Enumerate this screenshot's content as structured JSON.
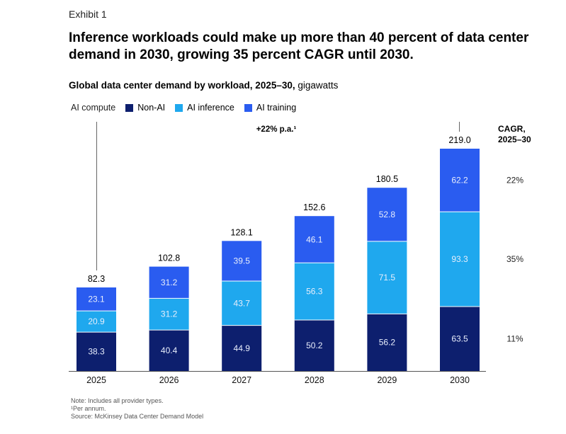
{
  "exhibit": "Exhibit 1",
  "headline": "Inference workloads could make up more than 40 percent of data center demand in 2030, growing 35 percent CAGR until 2030.",
  "subtitle_bold": "Global data center demand by workload, 2025–30,",
  "subtitle_unit": "gigawatts",
  "legend": {
    "group_label": "AI compute",
    "items": [
      {
        "label": "Non-AI",
        "color": "#0d1f6e"
      },
      {
        "label": "AI inference",
        "color": "#1fa8ee"
      },
      {
        "label": "AI training",
        "color": "#2a5cf0"
      }
    ]
  },
  "growth_annotation": "+22% p.a.¹",
  "cagr_header": [
    "CAGR,",
    "2025–30"
  ],
  "colors": {
    "non_ai": "#0d1f6e",
    "ai_inference": "#1fa8ee",
    "ai_training": "#2a5cf0",
    "axis": "#555555"
  },
  "chart_data": {
    "type": "bar",
    "stacked": true,
    "categories": [
      "2025",
      "2026",
      "2027",
      "2028",
      "2029",
      "2030"
    ],
    "series": [
      {
        "name": "Non-AI",
        "values": [
          38.3,
          40.4,
          44.9,
          50.2,
          56.2,
          63.5
        ],
        "cagr": "11%"
      },
      {
        "name": "AI inference",
        "values": [
          20.9,
          31.2,
          43.7,
          56.3,
          71.5,
          93.3
        ],
        "cagr": "35%"
      },
      {
        "name": "AI training",
        "values": [
          23.1,
          31.2,
          39.5,
          46.1,
          52.8,
          62.2
        ],
        "cagr": "22%"
      }
    ],
    "totals": [
      "82.3",
      "102.8",
      "128.1",
      "152.6",
      "180.5",
      "219.0"
    ],
    "ylim": [
      0,
      219
    ],
    "grid": false,
    "legend_position": "top-left"
  },
  "footnotes": [
    "Note: Includes all provider types.",
    "¹Per annum.",
    "Source: McKinsey Data Center Demand Model"
  ]
}
